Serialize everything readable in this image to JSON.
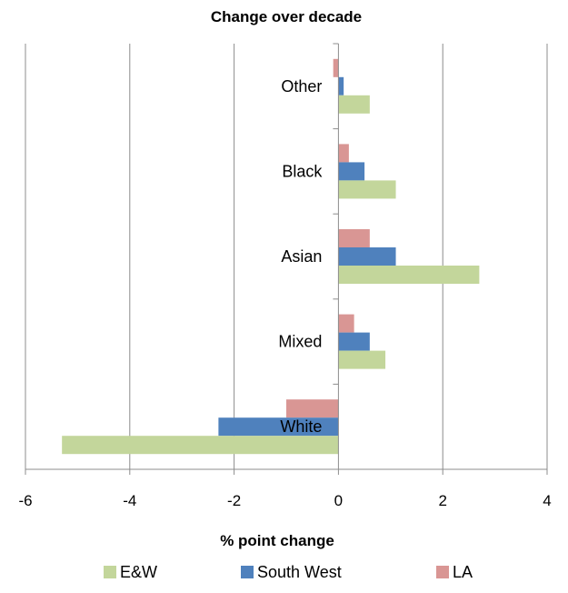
{
  "chart_data": {
    "type": "bar",
    "orientation": "horizontal",
    "title": "Change over decade",
    "xlabel": "% point change",
    "ylabel": "",
    "xlim": [
      -6,
      4
    ],
    "x_ticks": [
      "-6",
      "-4",
      "-2",
      "0",
      "2",
      "4"
    ],
    "grid": "vertical",
    "legend_position": "bottom",
    "categories": [
      "White",
      "Mixed",
      "Asian",
      "Black",
      "Other"
    ],
    "series": [
      {
        "name": "E&W",
        "color": "#c3d69b",
        "values": [
          -5.3,
          0.9,
          2.7,
          1.1,
          0.6
        ]
      },
      {
        "name": "South West",
        "color": "#4f81bd",
        "values": [
          -2.3,
          0.6,
          1.1,
          0.5,
          0.1
        ]
      },
      {
        "name": "LA",
        "color": "#d99694",
        "values": [
          -1.0,
          0.3,
          0.6,
          0.2,
          -0.1
        ]
      }
    ]
  }
}
